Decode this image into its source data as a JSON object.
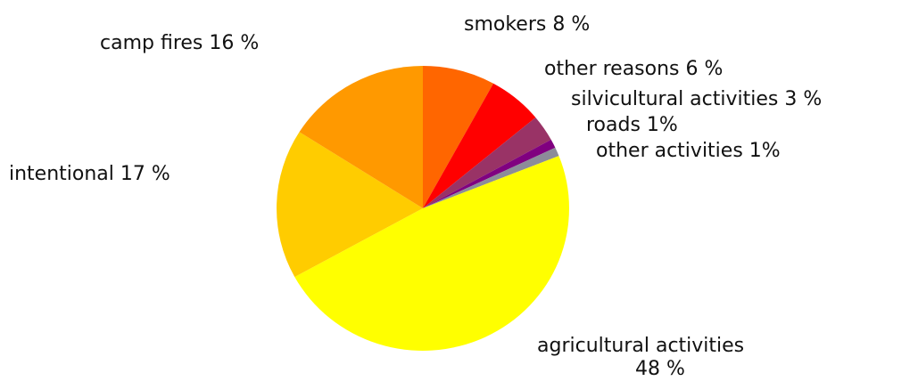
{
  "chart_data": {
    "type": "pie",
    "title": "",
    "slices": [
      {
        "label": "smokers 8 %",
        "value": 8,
        "color": "#ff6600"
      },
      {
        "label": "other reasons 6 %",
        "value": 6,
        "color": "#ff0000"
      },
      {
        "label": "silvicultural activities 3 %",
        "value": 3,
        "color": "#993366"
      },
      {
        "label": "roads 1%",
        "value": 1,
        "color": "#800080"
      },
      {
        "label": "other activities 1%",
        "value": 1,
        "color": "#8c8c99"
      },
      {
        "label": "agricultural activities",
        "label_line2": "48 %",
        "value": 48,
        "color": "#ffff00"
      },
      {
        "label": "intentional 17 %",
        "value": 17,
        "color": "#ffcc00"
      },
      {
        "label": "camp fires 16 %",
        "value": 16,
        "color": "#ff9900"
      }
    ],
    "start": "12 o'clock",
    "direction": "clockwise",
    "legend": "none (labels beside slices)"
  }
}
